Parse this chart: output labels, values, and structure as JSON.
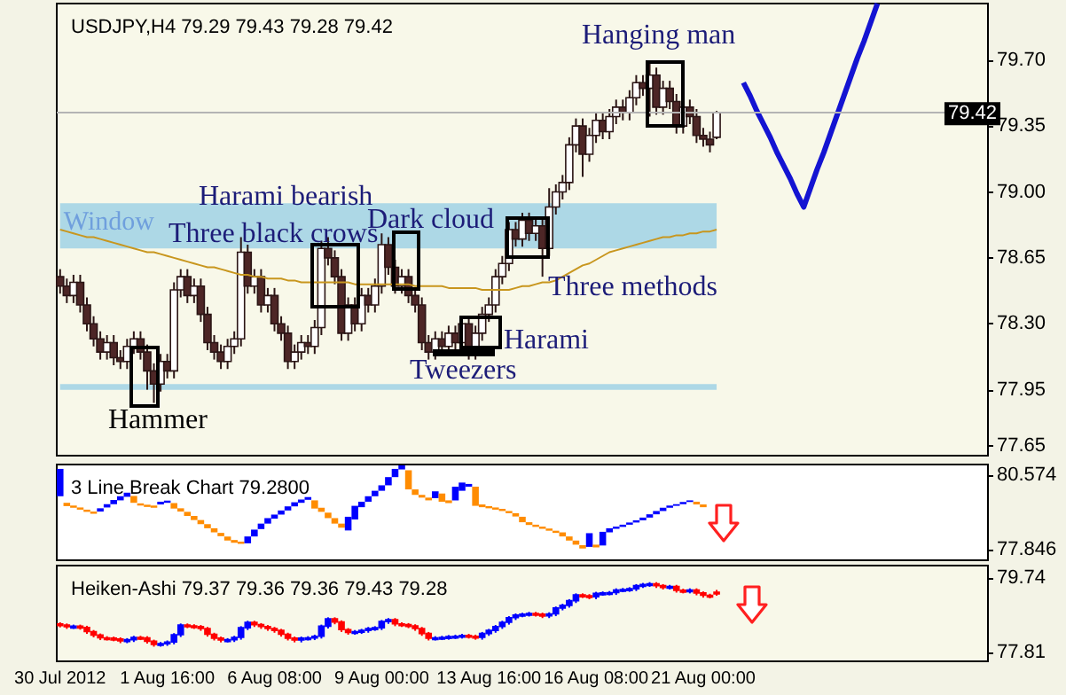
{
  "chart_data": [
    {
      "type": "candlestick",
      "title": "USDJPY,H4 79.29 79.43 79.28 79.42",
      "categories": [
        null,
        null,
        null,
        null,
        null,
        null,
        null,
        null,
        null,
        null,
        null,
        null,
        null,
        null,
        null,
        null,
        null,
        null,
        null,
        null,
        null,
        null,
        null,
        null,
        null,
        null,
        null,
        null,
        null,
        null,
        null,
        null,
        null,
        null,
        null,
        null,
        null,
        null,
        null,
        null,
        null,
        null,
        null,
        null,
        null,
        null,
        null,
        null,
        null,
        null,
        null,
        null,
        null,
        null,
        null,
        null,
        null,
        null,
        null,
        null,
        null,
        null,
        null,
        null,
        null,
        null,
        null,
        null,
        null,
        null,
        null,
        null,
        null,
        null,
        null,
        null,
        null,
        null,
        null,
        null,
        null,
        null,
        null,
        null,
        null,
        null,
        null,
        null,
        null,
        null,
        null,
        null,
        null,
        null,
        null,
        null,
        null,
        null,
        null,
        null,
        null,
        null,
        null,
        null,
        null,
        null,
        null,
        null,
        null,
        null,
        null,
        null,
        null,
        null,
        null,
        null,
        null,
        null,
        null,
        null,
        null,
        null,
        null,
        null,
        null,
        null,
        null,
        null,
        null,
        null,
        null,
        null,
        null,
        null,
        null,
        null,
        null,
        null,
        null
      ],
      "ohlc": [
        [
          78.55,
          78.59,
          78.46,
          78.5
        ],
        [
          78.5,
          78.54,
          78.41,
          78.45
        ],
        [
          78.45,
          78.56,
          78.41,
          78.52
        ],
        [
          78.52,
          78.56,
          78.36,
          78.4
        ],
        [
          78.4,
          78.44,
          78.26,
          78.3
        ],
        [
          78.3,
          78.34,
          78.18,
          78.22
        ],
        [
          78.22,
          78.26,
          78.11,
          78.15
        ],
        [
          78.15,
          78.24,
          78.11,
          78.2
        ],
        [
          78.2,
          78.24,
          78.08,
          78.12
        ],
        [
          78.12,
          78.16,
          78.06,
          78.1
        ],
        [
          78.1,
          78.22,
          78.06,
          78.18
        ],
        [
          78.18,
          78.26,
          78.14,
          78.22
        ],
        [
          78.22,
          78.26,
          78.11,
          78.15
        ],
        [
          78.15,
          78.19,
          77.95,
          78.05
        ],
        [
          78.05,
          78.09,
          77.88,
          77.98
        ],
        [
          77.98,
          78.14,
          77.94,
          78.1
        ],
        [
          78.1,
          78.14,
          78.01,
          78.05
        ],
        [
          78.05,
          78.52,
          78.01,
          78.48
        ],
        [
          78.48,
          78.59,
          78.44,
          78.55
        ],
        [
          78.55,
          78.59,
          78.41,
          78.45
        ],
        [
          78.45,
          78.54,
          78.41,
          78.5
        ],
        [
          78.5,
          78.54,
          78.31,
          78.35
        ],
        [
          78.35,
          78.39,
          78.16,
          78.2
        ],
        [
          78.2,
          78.24,
          78.11,
          78.15
        ],
        [
          78.15,
          78.19,
          78.06,
          78.1
        ],
        [
          78.1,
          78.22,
          78.06,
          78.18
        ],
        [
          78.18,
          78.26,
          78.14,
          78.22
        ],
        [
          78.22,
          78.76,
          78.18,
          78.68
        ],
        [
          78.68,
          78.72,
          78.46,
          78.5
        ],
        [
          78.5,
          78.59,
          78.46,
          78.55
        ],
        [
          78.55,
          78.59,
          78.36,
          78.4
        ],
        [
          78.4,
          78.49,
          78.36,
          78.45
        ],
        [
          78.45,
          78.49,
          78.26,
          78.3
        ],
        [
          78.3,
          78.34,
          78.21,
          78.25
        ],
        [
          78.25,
          78.29,
          78.06,
          78.1
        ],
        [
          78.1,
          78.19,
          78.06,
          78.15
        ],
        [
          78.15,
          78.24,
          78.11,
          78.2
        ],
        [
          78.2,
          78.24,
          78.14,
          78.18
        ],
        [
          78.18,
          78.32,
          78.14,
          78.28
        ],
        [
          78.28,
          78.74,
          78.24,
          78.7
        ],
        [
          78.7,
          78.76,
          78.61,
          78.65
        ],
        [
          78.65,
          78.69,
          78.51,
          78.55
        ],
        [
          78.55,
          78.59,
          78.21,
          78.25
        ],
        [
          78.25,
          78.44,
          78.21,
          78.4
        ],
        [
          78.4,
          78.44,
          78.26,
          78.3
        ],
        [
          78.3,
          78.49,
          78.26,
          78.45
        ],
        [
          78.45,
          78.49,
          78.36,
          78.4
        ],
        [
          78.4,
          78.54,
          78.36,
          78.5
        ],
        [
          78.5,
          78.78,
          78.46,
          78.72
        ],
        [
          78.72,
          78.76,
          78.56,
          78.6
        ],
        [
          78.6,
          78.64,
          78.46,
          78.5
        ],
        [
          78.5,
          78.59,
          78.46,
          78.55
        ],
        [
          78.55,
          78.59,
          78.41,
          78.45
        ],
        [
          78.45,
          78.49,
          78.36,
          78.4
        ],
        [
          78.4,
          78.44,
          78.16,
          78.2
        ],
        [
          78.2,
          78.24,
          78.11,
          78.15
        ],
        [
          78.15,
          78.26,
          78.11,
          78.22
        ],
        [
          78.22,
          78.26,
          78.14,
          78.18
        ],
        [
          78.18,
          78.29,
          78.14,
          78.25
        ],
        [
          78.25,
          78.29,
          78.16,
          78.2
        ],
        [
          78.2,
          78.34,
          78.16,
          78.3
        ],
        [
          78.3,
          78.34,
          78.11,
          78.15
        ],
        [
          78.15,
          78.29,
          78.11,
          78.25
        ],
        [
          78.25,
          78.39,
          78.21,
          78.35
        ],
        [
          78.35,
          78.44,
          78.31,
          78.4
        ],
        [
          78.4,
          78.59,
          78.36,
          78.55
        ],
        [
          78.55,
          78.66,
          78.51,
          78.62
        ],
        [
          78.62,
          78.84,
          78.58,
          78.8
        ],
        [
          78.8,
          78.84,
          78.71,
          78.75
        ],
        [
          78.75,
          78.89,
          78.71,
          78.85
        ],
        [
          78.85,
          78.89,
          78.74,
          78.78
        ],
        [
          78.78,
          78.86,
          78.74,
          78.82
        ],
        [
          78.82,
          78.86,
          78.55,
          78.7
        ],
        [
          78.7,
          79.02,
          78.66,
          78.92
        ],
        [
          78.92,
          79.04,
          78.88,
          79.0
        ],
        [
          79.0,
          79.09,
          78.96,
          79.05
        ],
        [
          79.05,
          79.29,
          79.01,
          79.25
        ],
        [
          79.25,
          79.39,
          79.21,
          79.35
        ],
        [
          79.35,
          79.39,
          79.08,
          79.2
        ],
        [
          79.2,
          79.34,
          79.16,
          79.3
        ],
        [
          79.3,
          79.42,
          79.26,
          79.38
        ],
        [
          79.38,
          79.42,
          79.28,
          79.32
        ],
        [
          79.32,
          79.44,
          79.28,
          79.4
        ],
        [
          79.4,
          79.49,
          79.36,
          79.45
        ],
        [
          79.45,
          79.49,
          79.38,
          79.42
        ],
        [
          79.42,
          79.54,
          79.38,
          79.5
        ],
        [
          79.5,
          79.62,
          79.46,
          79.58
        ],
        [
          79.58,
          79.62,
          79.51,
          79.55
        ],
        [
          79.55,
          79.68,
          79.4,
          79.62
        ],
        [
          79.62,
          79.66,
          79.41,
          79.45
        ],
        [
          79.45,
          79.59,
          79.41,
          79.55
        ],
        [
          79.55,
          79.59,
          79.44,
          79.48
        ],
        [
          79.48,
          79.52,
          79.31,
          79.35
        ],
        [
          79.35,
          79.49,
          79.31,
          79.45
        ],
        [
          79.45,
          79.49,
          79.36,
          79.4
        ],
        [
          79.4,
          79.44,
          79.26,
          79.3
        ],
        [
          79.3,
          79.34,
          79.24,
          79.28
        ],
        [
          79.28,
          79.32,
          79.21,
          79.25
        ],
        [
          79.29,
          79.43,
          79.28,
          79.42
        ],
        null,
        null,
        null,
        null,
        null,
        null,
        null,
        null,
        null,
        null,
        null,
        null,
        null,
        null,
        null,
        null,
        null,
        null,
        null,
        null,
        null,
        null,
        null,
        null,
        null,
        null,
        null,
        null,
        null,
        null,
        null,
        null,
        null,
        null,
        null,
        null,
        null,
        null,
        null,
        null
      ],
      "series": [
        {
          "type": "line",
          "color": "#c8961e",
          "values": [
            78.8,
            78.79,
            78.78,
            78.77,
            78.76,
            78.76,
            78.75,
            78.74,
            78.73,
            78.72,
            78.71,
            78.7,
            78.69,
            78.68,
            78.68,
            78.67,
            78.66,
            78.65,
            78.64,
            78.63,
            78.62,
            78.61,
            78.6,
            78.6,
            78.59,
            78.58,
            78.57,
            78.56,
            78.56,
            78.55,
            78.55,
            78.54,
            78.54,
            78.54,
            78.53,
            78.53,
            78.52,
            78.52,
            78.52,
            78.52,
            78.52,
            78.52,
            78.52,
            78.52,
            78.51,
            78.51,
            78.51,
            78.51,
            78.51,
            78.51,
            78.51,
            78.51,
            78.51,
            78.5,
            78.5,
            78.5,
            78.5,
            78.5,
            78.49,
            78.49,
            78.49,
            78.49,
            78.49,
            78.48,
            78.48,
            78.48,
            78.48,
            78.48,
            78.49,
            78.5,
            78.5,
            78.51,
            78.52,
            78.52,
            78.53,
            78.55,
            78.57,
            78.59,
            78.61,
            78.62,
            78.64,
            78.66,
            78.68,
            78.69,
            78.7,
            78.71,
            78.72,
            78.73,
            78.74,
            78.75,
            78.76,
            78.76,
            78.77,
            78.77,
            78.78,
            78.78,
            78.79,
            78.79,
            78.8,
            null,
            null,
            null,
            null,
            null,
            null,
            null,
            null,
            null,
            null,
            null,
            null,
            null,
            null,
            null,
            null,
            null,
            null,
            null,
            null,
            null,
            null,
            null,
            null,
            null,
            null,
            null,
            null,
            null,
            null,
            null,
            null,
            null,
            null,
            null,
            null,
            null,
            null,
            null,
            null
          ]
        },
        {
          "type": "line",
          "color": "#1414d2",
          "values": [
            null,
            null,
            null,
            null,
            null,
            null,
            null,
            null,
            null,
            null,
            null,
            null,
            null,
            null,
            null,
            null,
            null,
            null,
            null,
            null,
            null,
            null,
            null,
            null,
            null,
            null,
            null,
            null,
            null,
            null,
            null,
            null,
            null,
            null,
            null,
            null,
            null,
            null,
            null,
            null,
            null,
            null,
            null,
            null,
            null,
            null,
            null,
            null,
            null,
            null,
            null,
            null,
            null,
            null,
            null,
            null,
            null,
            null,
            null,
            null,
            null,
            null,
            null,
            null,
            null,
            null,
            null,
            null,
            null,
            null,
            null,
            null,
            null,
            null,
            null,
            null,
            null,
            null,
            null,
            null,
            null,
            null,
            null,
            null,
            null,
            null,
            null,
            null,
            null,
            null,
            null,
            null,
            null,
            null,
            null,
            null,
            null,
            null,
            null,
            null,
            null,
            null,
            79.58,
            79.51,
            79.43,
            79.36,
            79.29,
            79.21,
            79.14,
            79.07,
            78.99,
            78.92,
            79.02,
            79.12,
            79.21,
            79.31,
            79.41,
            79.51,
            79.61,
            79.71,
            79.8,
            79.9,
            80.0,
            null,
            null,
            null,
            null,
            null,
            null,
            null,
            null,
            null,
            null,
            null,
            null,
            null,
            null,
            null,
            null
          ]
        }
      ],
      "marker": "none",
      "ylim": [
        77.6,
        80.0
      ],
      "yticks": [
        77.65,
        77.95,
        {
          "value": 78.3,
          "label": "78.30"
        },
        78.65,
        {
          "value": 79,
          "label": "79.00"
        },
        79.35,
        {
          "value": 79.7,
          "label": "79.70"
        }
      ],
      "bands": [
        {
          "axis": "y",
          "from": 78.7,
          "to": 78.94,
          "label": "Window",
          "color": "#add8e6"
        },
        {
          "axis": "y",
          "from": 77.95,
          "to": 77.98,
          "color": "#add8e6"
        }
      ],
      "ref_lines": [
        {
          "axis": "y",
          "value": 79.42,
          "label": "79.42",
          "color": "#b4b4b4"
        }
      ],
      "annotations": [
        "Hanging man",
        "Harami bearish",
        "Three black crows",
        "Dark cloud",
        "Three methods",
        "Harami",
        "Tweezers",
        "Hammer"
      ],
      "grid": false,
      "tick_labels": "y"
    },
    {
      "type": "bar",
      "title": "3 Line Break Chart 79.2800",
      "categories": [
        null,
        null,
        null,
        null,
        null,
        null,
        null,
        null,
        null,
        null,
        null,
        null,
        null,
        null,
        null,
        null,
        null,
        null,
        null,
        null,
        null,
        null,
        null,
        null,
        null,
        null,
        null,
        null,
        null,
        null,
        null,
        null,
        null,
        null,
        null,
        null,
        null,
        null,
        null,
        null,
        null,
        null,
        null,
        null,
        null,
        null,
        null,
        null,
        null,
        null,
        null,
        null,
        null,
        null,
        null,
        null,
        null,
        null,
        null,
        null,
        null,
        null,
        null,
        null,
        null,
        null,
        null,
        null,
        null,
        null,
        null,
        null,
        null,
        null,
        null,
        null,
        null,
        null,
        null,
        null,
        null,
        null,
        null,
        null,
        null,
        null,
        null,
        null,
        null,
        null,
        null,
        null,
        null,
        null,
        null,
        null,
        null,
        null,
        null,
        null,
        null,
        null,
        null,
        null,
        null,
        null,
        null,
        null,
        null,
        null,
        null,
        null,
        null,
        null,
        null,
        null,
        null,
        null,
        null,
        null,
        null,
        null,
        null,
        null,
        null,
        null,
        null,
        null,
        null,
        null,
        null,
        null,
        null,
        null,
        null,
        null,
        null,
        null,
        null
      ],
      "base": [
        79.8,
        79.44,
        79.38,
        79.31,
        79.23,
        79.16,
        79.24,
        79.39,
        79.51,
        79.65,
        79.78,
        79.56,
        79.46,
        79.41,
        79.38,
        79.5,
        79.56,
        79.35,
        79.24,
        79.08,
        78.93,
        78.78,
        78.63,
        78.48,
        78.34,
        78.18,
        78.1,
        78.06,
        78.08,
        78.33,
        78.6,
        78.8,
        78.98,
        79.13,
        79.28,
        79.43,
        79.56,
        79.67,
        79.35,
        79.23,
        79.0,
        78.8,
        78.65,
        78.55,
        78.95,
        79.4,
        79.6,
        79.8,
        80.0,
        80.2,
        80.5,
        80.78,
        80.05,
        79.85,
        79.75,
        79.65,
        79.73,
        79.6,
        79.55,
        79.65,
        80.0,
        80.15,
        79.45,
        79.4,
        79.36,
        79.31,
        79.26,
        79.18,
        79.06,
        78.85,
        78.75,
        78.68,
        78.61,
        78.54,
        78.46,
        78.33,
        78.18,
        78.03,
        77.89,
        77.95,
        77.93,
        78.0,
        78.48,
        78.61,
        78.68,
        78.76,
        78.84,
        78.92,
        79.02,
        79.14,
        79.26,
        79.38,
        79.45,
        79.51,
        79.59,
        79.5,
        79.4,
        null,
        null,
        null,
        null,
        null,
        null,
        null,
        null,
        null,
        null,
        null,
        null,
        null,
        null,
        null,
        null,
        null,
        null,
        null,
        null,
        null,
        null,
        null,
        null,
        null,
        null,
        null,
        null,
        null,
        null,
        null,
        null,
        null,
        null,
        null,
        null,
        null,
        null,
        null,
        null,
        null,
        null
      ],
      "values": [
        1.0,
        0.12,
        0.08,
        0.08,
        0.08,
        0.08,
        0.12,
        0.12,
        0.15,
        0.15,
        0.15,
        0.25,
        0.08,
        0.08,
        0.08,
        0.1,
        0.08,
        0.2,
        0.12,
        0.15,
        0.15,
        0.15,
        0.15,
        0.15,
        0.12,
        0.15,
        0.1,
        0.08,
        0.25,
        0.25,
        0.2,
        0.2,
        0.15,
        0.15,
        0.15,
        0.15,
        0.12,
        0.1,
        0.3,
        0.15,
        0.2,
        0.2,
        0.15,
        0.5,
        0.5,
        0.2,
        0.2,
        0.2,
        0.2,
        0.3,
        0.3,
        0.15,
        0.7,
        0.2,
        0.1,
        0.1,
        0.25,
        0.3,
        0.1,
        0.5,
        0.3,
        0.1,
        0.7,
        0.1,
        0.08,
        0.08,
        0.08,
        0.08,
        0.12,
        0.2,
        0.1,
        0.08,
        0.08,
        0.08,
        0.08,
        0.15,
        0.15,
        0.15,
        0.12,
        0.5,
        0.1,
        0.5,
        0.15,
        0.08,
        0.08,
        0.08,
        0.08,
        0.1,
        0.12,
        0.12,
        0.12,
        0.08,
        0.06,
        0.08,
        0.06,
        0.1,
        0.1,
        null,
        null,
        null,
        null,
        null,
        null,
        null,
        null,
        null,
        null,
        null,
        null,
        null,
        null,
        null,
        null,
        null,
        null,
        null,
        null,
        null,
        null,
        null,
        null,
        null,
        null,
        null,
        null,
        null,
        null,
        null,
        null,
        null,
        null,
        null,
        null,
        null,
        null,
        null,
        null,
        null,
        null
      ],
      "colors": [
        "#0000ff",
        "#ff8c00",
        "#ff8c00",
        "#ff8c00",
        "#ff8c00",
        "#ff8c00",
        "#0000ff",
        "#0000ff",
        "#0000ff",
        "#0000ff",
        "#0000ff",
        "#ff8c00",
        "#ff8c00",
        "#ff8c00",
        "#ff8c00",
        "#0000ff",
        "#0000ff",
        "#ff8c00",
        "#ff8c00",
        "#ff8c00",
        "#ff8c00",
        "#ff8c00",
        "#ff8c00",
        "#ff8c00",
        "#ff8c00",
        "#ff8c00",
        "#ff8c00",
        "#ff8c00",
        "#0000ff",
        "#0000ff",
        "#0000ff",
        "#0000ff",
        "#0000ff",
        "#0000ff",
        "#0000ff",
        "#0000ff",
        "#0000ff",
        "#0000ff",
        "#ff8c00",
        "#ff8c00",
        "#ff8c00",
        "#ff8c00",
        "#ff8c00",
        "#0000ff",
        "#0000ff",
        "#0000ff",
        "#0000ff",
        "#0000ff",
        "#0000ff",
        "#0000ff",
        "#0000ff",
        "#0000ff",
        "#ff8c00",
        "#ff8c00",
        "#ff8c00",
        "#ff8c00",
        "#0000ff",
        "#ff8c00",
        "#ff8c00",
        "#0000ff",
        "#0000ff",
        "#0000ff",
        "#ff8c00",
        "#ff8c00",
        "#ff8c00",
        "#ff8c00",
        "#ff8c00",
        "#ff8c00",
        "#ff8c00",
        "#ff8c00",
        "#ff8c00",
        "#ff8c00",
        "#ff8c00",
        "#ff8c00",
        "#ff8c00",
        "#ff8c00",
        "#ff8c00",
        "#ff8c00",
        "#ff8c00",
        "#0000ff",
        "#ff8c00",
        "#0000ff",
        "#0000ff",
        "#0000ff",
        "#0000ff",
        "#0000ff",
        "#0000ff",
        "#0000ff",
        "#0000ff",
        "#0000ff",
        "#0000ff",
        "#0000ff",
        "#0000ff",
        "#0000ff",
        "#0000ff",
        "#ff8c00",
        "#ff8c00",
        null,
        null,
        null,
        null,
        null,
        null,
        null,
        null,
        null,
        null,
        null,
        null,
        null,
        null,
        null,
        null,
        null,
        null,
        null,
        null,
        null,
        null,
        null,
        null,
        null,
        null,
        null,
        null,
        null,
        null,
        null,
        null,
        null,
        null,
        null,
        null,
        null,
        null,
        null,
        null,
        null,
        null
      ],
      "ylim": [
        77.46,
        80.96
      ],
      "yticks": [
        77.846,
        80.574
      ],
      "tick_labels": "y"
    },
    {
      "type": "candlestick",
      "title": "Heiken-Ashi 79.37 79.36 79.36 79.43 79.28",
      "categories": [
        "30 Jul 2012",
        null,
        null,
        null,
        null,
        null,
        null,
        null,
        null,
        null,
        null,
        null,
        null,
        null,
        null,
        null,
        "1 Aug 16:00",
        null,
        null,
        null,
        null,
        null,
        null,
        null,
        null,
        null,
        null,
        null,
        null,
        null,
        null,
        null,
        "6 Aug 08:00",
        null,
        null,
        null,
        null,
        null,
        null,
        null,
        null,
        null,
        null,
        null,
        null,
        null,
        null,
        null,
        "9 Aug 00:00",
        null,
        null,
        null,
        null,
        null,
        null,
        null,
        null,
        null,
        null,
        null,
        null,
        null,
        null,
        null,
        "13 Aug 16:00",
        null,
        null,
        null,
        null,
        null,
        null,
        null,
        null,
        null,
        null,
        null,
        null,
        null,
        null,
        null,
        "16 Aug 08:00",
        null,
        null,
        null,
        null,
        null,
        null,
        null,
        null,
        null,
        null,
        null,
        null,
        null,
        null,
        null,
        "21 Aug 00:00",
        null,
        null,
        null,
        null,
        null,
        null,
        null,
        null,
        null,
        null,
        null,
        null,
        null,
        null,
        null,
        null,
        null,
        null,
        null,
        null,
        null,
        null,
        null,
        null,
        null,
        null,
        null,
        null,
        null,
        null,
        null,
        null,
        null,
        null,
        null,
        null,
        null,
        null,
        null,
        null,
        null,
        null
      ],
      "ohlc": [
        [
          78.55,
          78.59,
          78.46,
          78.52
        ],
        [
          78.52,
          78.56,
          78.42,
          78.48
        ],
        [
          78.48,
          78.53,
          78.42,
          78.49
        ],
        [
          78.49,
          78.53,
          78.4,
          78.46
        ],
        [
          78.46,
          78.5,
          78.29,
          78.35
        ],
        [
          78.35,
          78.39,
          78.2,
          78.26
        ],
        [
          78.26,
          78.3,
          78.13,
          78.19
        ],
        [
          78.19,
          78.23,
          78.12,
          78.18
        ],
        [
          78.18,
          78.22,
          78.1,
          78.16
        ],
        [
          78.16,
          78.2,
          78.05,
          78.11
        ],
        [
          78.11,
          78.18,
          78.05,
          78.14
        ],
        [
          78.14,
          78.24,
          78.08,
          78.2
        ],
        [
          78.2,
          78.24,
          78.13,
          78.19
        ],
        [
          78.19,
          78.23,
          78.04,
          78.1
        ],
        [
          78.1,
          78.14,
          77.96,
          78.02
        ],
        [
          78.02,
          78.08,
          77.96,
          78.04
        ],
        [
          78.04,
          78.12,
          77.98,
          78.08
        ],
        [
          78.08,
          78.31,
          78.02,
          78.27
        ],
        [
          78.27,
          78.56,
          78.21,
          78.52
        ],
        [
          78.52,
          78.56,
          78.44,
          78.5
        ],
        [
          78.5,
          78.54,
          78.42,
          78.48
        ],
        [
          78.48,
          78.52,
          78.37,
          78.43
        ],
        [
          78.43,
          78.47,
          78.22,
          78.28
        ],
        [
          78.28,
          78.32,
          78.12,
          78.18
        ],
        [
          78.18,
          78.22,
          78.07,
          78.13
        ],
        [
          78.13,
          78.18,
          78.07,
          78.14
        ],
        [
          78.14,
          78.24,
          78.08,
          78.2
        ],
        [
          78.2,
          78.49,
          78.14,
          78.45
        ],
        [
          78.45,
          78.63,
          78.39,
          78.59
        ],
        [
          78.59,
          78.63,
          78.47,
          78.53
        ],
        [
          78.53,
          78.57,
          78.42,
          78.48
        ],
        [
          78.48,
          78.52,
          78.37,
          78.43
        ],
        [
          78.43,
          78.47,
          78.32,
          78.38
        ],
        [
          78.38,
          78.42,
          78.22,
          78.28
        ],
        [
          78.28,
          78.32,
          78.12,
          78.18
        ],
        [
          78.18,
          78.22,
          78.07,
          78.13
        ],
        [
          78.13,
          78.22,
          78.07,
          78.18
        ],
        [
          78.18,
          78.23,
          78.12,
          78.19
        ],
        [
          78.19,
          78.27,
          78.13,
          78.23
        ],
        [
          78.23,
          78.53,
          78.17,
          78.49
        ],
        [
          78.49,
          78.72,
          78.43,
          78.68
        ],
        [
          78.68,
          78.72,
          78.54,
          78.6
        ],
        [
          78.6,
          78.64,
          78.34,
          78.4
        ],
        [
          78.4,
          78.44,
          78.27,
          78.33
        ],
        [
          78.33,
          78.39,
          78.27,
          78.35
        ],
        [
          78.35,
          78.42,
          78.29,
          78.38
        ],
        [
          78.38,
          78.47,
          78.32,
          78.43
        ],
        [
          78.43,
          78.49,
          78.37,
          78.45
        ],
        [
          78.45,
          78.65,
          78.39,
          78.61
        ],
        [
          78.61,
          78.7,
          78.55,
          78.66
        ],
        [
          78.66,
          78.7,
          78.49,
          78.55
        ],
        [
          78.55,
          78.59,
          78.47,
          78.53
        ],
        [
          78.53,
          78.57,
          78.44,
          78.5
        ],
        [
          78.5,
          78.54,
          78.37,
          78.43
        ],
        [
          78.43,
          78.47,
          78.24,
          78.3
        ],
        [
          78.3,
          78.34,
          78.12,
          78.18
        ],
        [
          78.18,
          78.23,
          78.12,
          78.19
        ],
        [
          78.19,
          78.24,
          78.13,
          78.2
        ],
        [
          78.2,
          78.26,
          78.14,
          78.22
        ],
        [
          78.22,
          78.27,
          78.16,
          78.23
        ],
        [
          78.23,
          78.29,
          78.17,
          78.25
        ],
        [
          78.25,
          78.29,
          78.17,
          78.23
        ],
        [
          78.23,
          78.27,
          78.14,
          78.2
        ],
        [
          78.2,
          78.34,
          78.14,
          78.3
        ],
        [
          78.3,
          78.42,
          78.24,
          78.38
        ],
        [
          78.38,
          78.52,
          78.32,
          78.48
        ],
        [
          78.48,
          78.63,
          78.42,
          78.59
        ],
        [
          78.59,
          78.75,
          78.53,
          78.71
        ],
        [
          78.71,
          78.82,
          78.65,
          78.78
        ],
        [
          78.78,
          78.84,
          78.72,
          78.8
        ],
        [
          78.8,
          78.86,
          78.74,
          78.82
        ],
        [
          78.82,
          78.86,
          78.74,
          78.8
        ],
        [
          78.8,
          78.84,
          78.7,
          78.76
        ],
        [
          78.76,
          78.85,
          78.7,
          78.81
        ],
        [
          78.81,
          79.0,
          78.75,
          78.96
        ],
        [
          78.96,
          79.07,
          78.9,
          79.03
        ],
        [
          79.03,
          79.19,
          78.97,
          79.15
        ],
        [
          79.15,
          79.34,
          79.09,
          79.3
        ],
        [
          79.3,
          79.34,
          79.22,
          79.28
        ],
        [
          79.28,
          79.32,
          79.19,
          79.25
        ],
        [
          79.25,
          79.38,
          79.19,
          79.34
        ],
        [
          79.34,
          79.39,
          79.28,
          79.35
        ],
        [
          79.35,
          79.4,
          79.29,
          79.36
        ],
        [
          79.36,
          79.47,
          79.3,
          79.43
        ],
        [
          79.43,
          79.48,
          79.37,
          79.44
        ],
        [
          79.44,
          79.5,
          79.38,
          79.46
        ],
        [
          79.46,
          79.58,
          79.4,
          79.54
        ],
        [
          79.54,
          79.61,
          79.48,
          79.57
        ],
        [
          79.57,
          79.63,
          79.51,
          79.59
        ],
        [
          79.59,
          79.63,
          79.48,
          79.54
        ],
        [
          79.54,
          79.58,
          79.44,
          79.5
        ],
        [
          79.5,
          79.56,
          79.44,
          79.52
        ],
        [
          79.52,
          79.56,
          79.36,
          79.42
        ],
        [
          79.42,
          79.46,
          79.34,
          79.4
        ],
        [
          79.4,
          79.47,
          79.34,
          79.43
        ],
        [
          79.43,
          79.47,
          79.29,
          79.35
        ],
        [
          79.35,
          79.39,
          79.23,
          79.29
        ],
        [
          79.29,
          79.33,
          79.21,
          79.27
        ],
        [
          79.37,
          79.43,
          79.28,
          79.36
        ],
        null,
        null,
        null,
        null,
        null,
        null,
        null,
        null,
        null,
        null,
        null,
        null,
        null,
        null,
        null,
        null,
        null,
        null,
        null,
        null,
        null,
        null,
        null,
        null,
        null,
        null,
        null,
        null,
        null,
        null,
        null,
        null,
        null,
        null,
        null,
        null,
        null,
        null,
        null,
        null
      ],
      "ylim": [
        77.58,
        80.06
      ],
      "yticks": [
        77.81,
        79.74
      ]
    }
  ]
}
